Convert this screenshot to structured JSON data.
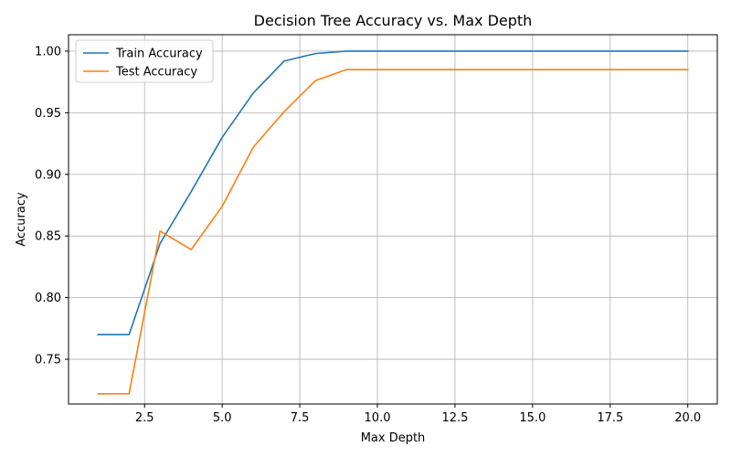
{
  "chart_data": {
    "type": "line",
    "title": "Decision Tree Accuracy vs. Max Depth",
    "xlabel": "Max Depth",
    "ylabel": "Accuracy",
    "xlim": [
      0.05,
      20.95
    ],
    "ylim": [
      0.7137,
      1.0133
    ],
    "xticks": [
      2.5,
      5.0,
      7.5,
      10.0,
      12.5,
      15.0,
      17.5,
      20.0
    ],
    "xtick_labels": [
      "2.5",
      "5.0",
      "7.5",
      "10.0",
      "12.5",
      "15.0",
      "17.5",
      "20.0"
    ],
    "yticks": [
      0.75,
      0.8,
      0.85,
      0.9,
      0.95,
      1.0
    ],
    "ytick_labels": [
      "0.75",
      "0.80",
      "0.85",
      "0.90",
      "0.95",
      "1.00"
    ],
    "grid": true,
    "legend_position": "top-left",
    "x": [
      1,
      2,
      3,
      4,
      5,
      6,
      7,
      8,
      9,
      10,
      11,
      12,
      13,
      14,
      15,
      16,
      17,
      18,
      19,
      20
    ],
    "series": [
      {
        "name": "Train Accuracy",
        "color": "#1f77b4",
        "values": [
          0.77,
          0.77,
          0.844,
          0.886,
          0.93,
          0.966,
          0.992,
          0.998,
          1.0,
          1.0,
          1.0,
          1.0,
          1.0,
          1.0,
          1.0,
          1.0,
          1.0,
          1.0,
          1.0,
          1.0
        ]
      },
      {
        "name": "Test Accuracy",
        "color": "#ff7f0e",
        "values": [
          0.722,
          0.722,
          0.854,
          0.839,
          0.874,
          0.922,
          0.951,
          0.976,
          0.985,
          0.985,
          0.985,
          0.985,
          0.985,
          0.985,
          0.985,
          0.985,
          0.985,
          0.985,
          0.985,
          0.985
        ]
      }
    ]
  }
}
